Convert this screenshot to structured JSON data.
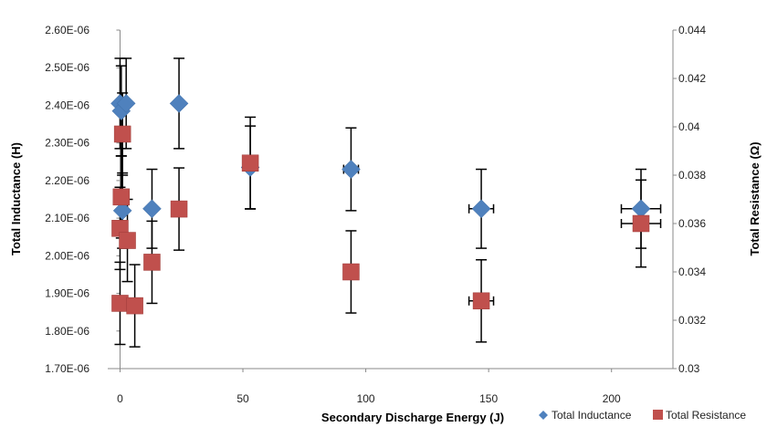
{
  "chart_data": {
    "type": "scatter",
    "xlabel": "Secondary Discharge Energy (J)",
    "ylabel": "Total Inductance (H)",
    "y2label": "Total Resistance (Ω)",
    "xlim": [
      -5,
      225
    ],
    "ylim": [
      1.7e-06,
      2.6e-06
    ],
    "y2lim": [
      0.03,
      0.044
    ],
    "x_ticks": [
      "0",
      "50",
      "100",
      "150",
      "200"
    ],
    "y_ticks": [
      "1.70E-06",
      "1.80E-06",
      "1.90E-06",
      "2.00E-06",
      "2.10E-06",
      "2.20E-06",
      "2.30E-06",
      "2.40E-06",
      "2.50E-06",
      "2.60E-06"
    ],
    "y2_ticks": [
      "0.03",
      "0.032",
      "0.034",
      "0.036",
      "0.038",
      "0.04",
      "0.042",
      "0.044"
    ],
    "grid": false,
    "legend_position": "bottom-right",
    "series": [
      {
        "name": "Total Inductance",
        "color": "#4F81BD",
        "marker": "diamond",
        "axis": "left",
        "points": [
          {
            "x": 0,
            "y": 2.405e-06,
            "err": 1.2e-07
          },
          {
            "x": 0.5,
            "y": 2.385e-06,
            "err": 1.2e-07
          },
          {
            "x": 1,
            "y": 2.12e-06,
            "err": 1e-07
          },
          {
            "x": 2.5,
            "y": 2.405e-06,
            "err": 1.2e-07
          },
          {
            "x": 13,
            "y": 2.125e-06,
            "err": 1.05e-07
          },
          {
            "x": 24,
            "y": 2.405e-06,
            "err": 1.2e-07
          },
          {
            "x": 53,
            "y": 2.235e-06,
            "err": 1.1e-07
          },
          {
            "x": 94,
            "y": 2.23e-06,
            "err": 1.1e-07,
            "xerr": 3
          },
          {
            "x": 147,
            "y": 2.125e-06,
            "err": 1.05e-07,
            "xerr": 5
          },
          {
            "x": 212,
            "y": 2.125e-06,
            "err": 1.05e-07,
            "xerr": 8
          }
        ]
      },
      {
        "name": "Total Resistance",
        "color": "#C0504D",
        "marker": "square",
        "axis": "right",
        "points": [
          {
            "x": 0,
            "y": 0.0327,
            "err": 0.0017
          },
          {
            "x": 0,
            "y": 0.0358,
            "err": 0.0017
          },
          {
            "x": 0.5,
            "y": 0.0371,
            "err": 0.0017
          },
          {
            "x": 1,
            "y": 0.0397,
            "err": 0.0017
          },
          {
            "x": 3,
            "y": 0.0353,
            "err": 0.0017
          },
          {
            "x": 6,
            "y": 0.0326,
            "err": 0.0017
          },
          {
            "x": 13,
            "y": 0.0344,
            "err": 0.0017
          },
          {
            "x": 24,
            "y": 0.0366,
            "err": 0.0017
          },
          {
            "x": 53,
            "y": 0.0385,
            "err": 0.0019
          },
          {
            "x": 94,
            "y": 0.034,
            "err": 0.0017,
            "xerr": 3
          },
          {
            "x": 147,
            "y": 0.0328,
            "err": 0.0017,
            "xerr": 5
          },
          {
            "x": 212,
            "y": 0.036,
            "err": 0.0018,
            "xerr": 8
          }
        ]
      }
    ]
  }
}
